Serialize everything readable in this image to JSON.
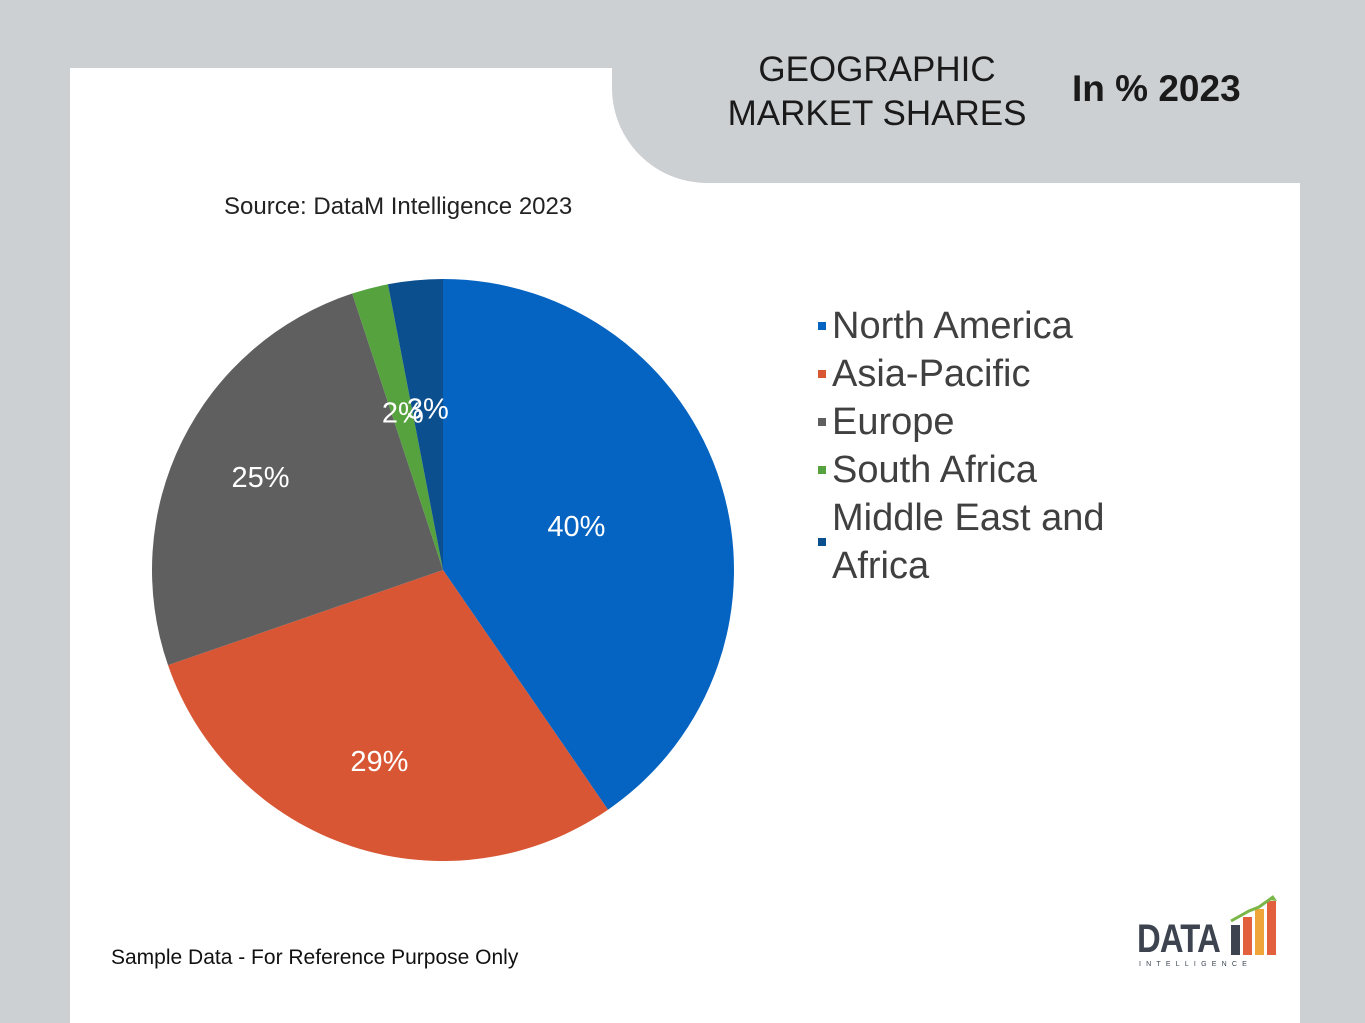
{
  "header": {
    "title_line1": "GEOGRAPHIC",
    "title_line2": "MARKET SHARES",
    "year_label": "In % 2023"
  },
  "source": "Source: DataM Intelligence 2023",
  "footer_note": "Sample Data - For Reference Purpose Only",
  "logo": {
    "word": "DATA",
    "sub": "INTELLIGENCE"
  },
  "chart_data": {
    "type": "pie",
    "categories": [
      "North America",
      "Asia-Pacific",
      "Europe",
      "South Africa",
      "Middle East and Africa"
    ],
    "values": [
      40,
      29,
      25,
      2,
      3
    ],
    "labels": [
      "40%",
      "29%",
      "25%",
      "2%",
      "3%"
    ],
    "colors": [
      "#0563c1",
      "#d85634",
      "#5f5f5f",
      "#55a23f",
      "#0b4f8f"
    ],
    "legend_placement": "right"
  }
}
